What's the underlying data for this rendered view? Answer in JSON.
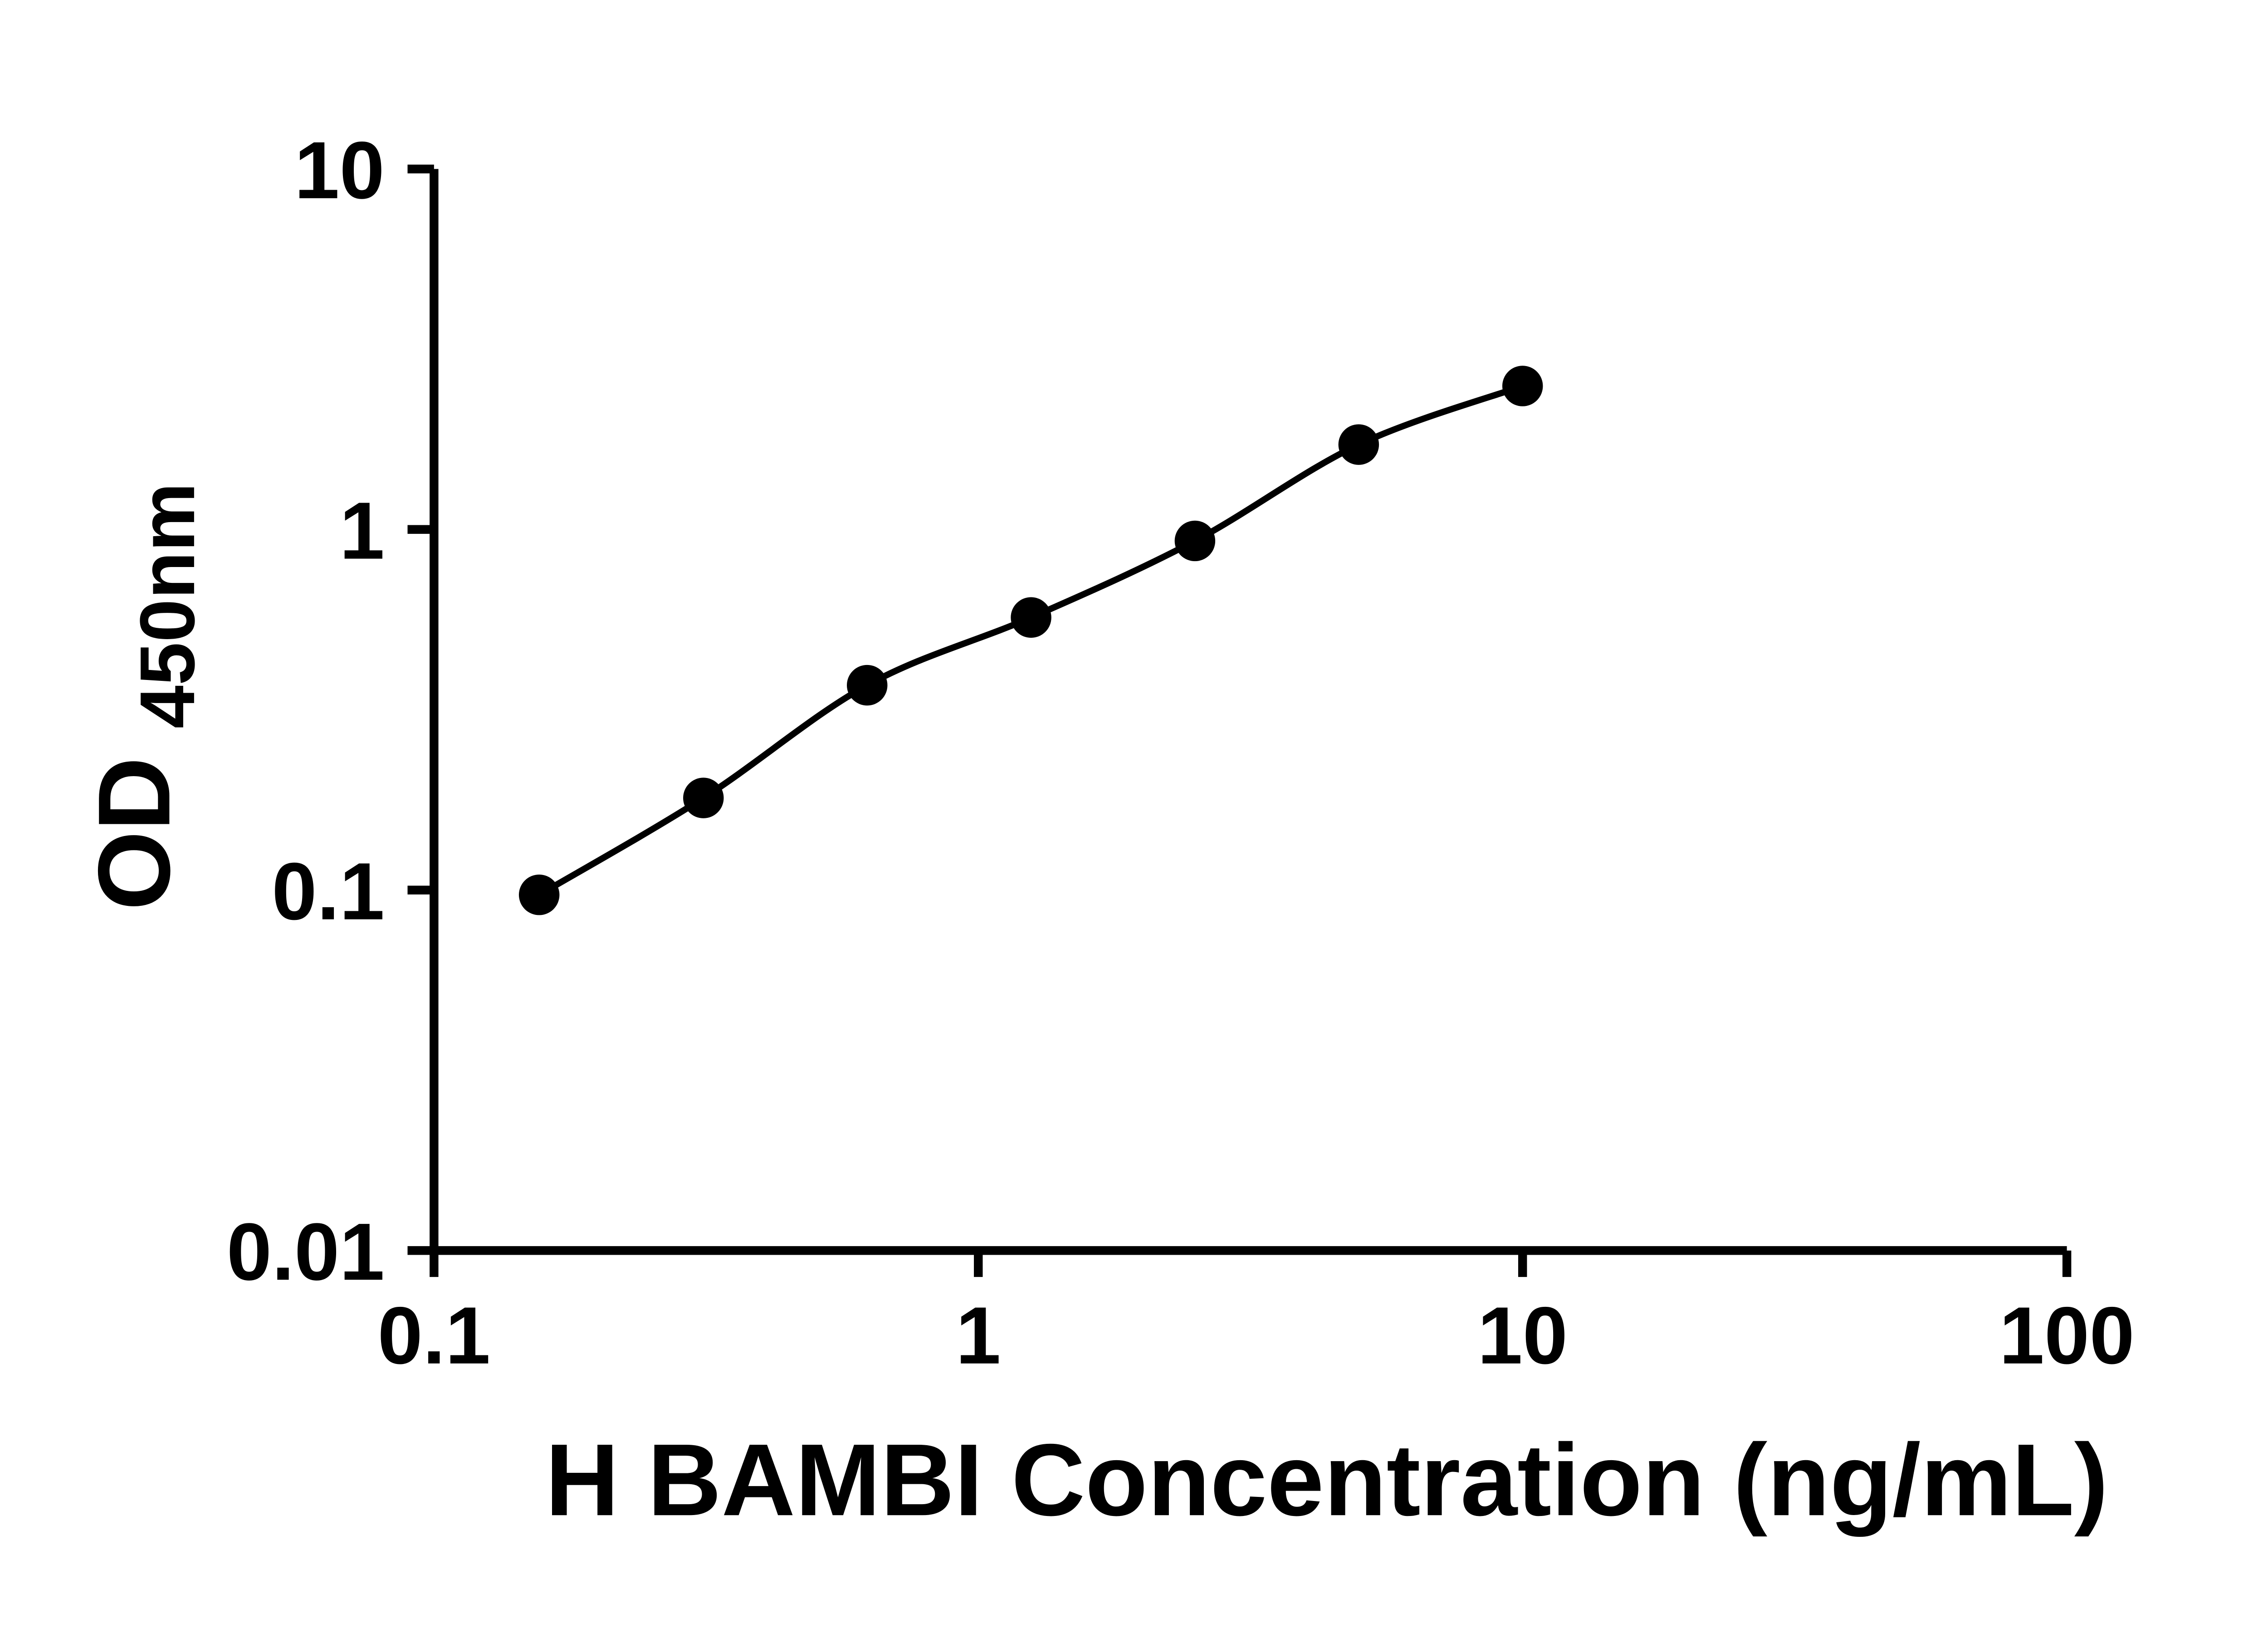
{
  "chart_data": {
    "type": "scatter",
    "title": "",
    "xlabel": "H BAMBI Concentration (ng/mL)",
    "ylabel_main": "OD",
    "ylabel_sub": "450nm",
    "x_scale": "log",
    "y_scale": "log",
    "xlim": [
      0.1,
      100
    ],
    "ylim": [
      0.01,
      10
    ],
    "grid": false,
    "legend": false,
    "x_ticks": [
      {
        "value": 0.1,
        "label": "0.1"
      },
      {
        "value": 1,
        "label": "1"
      },
      {
        "value": 10,
        "label": "10"
      },
      {
        "value": 100,
        "label": "100"
      }
    ],
    "y_ticks": [
      {
        "value": 0.01,
        "label": "0.01"
      },
      {
        "value": 0.1,
        "label": "0.1"
      },
      {
        "value": 1,
        "label": "1"
      },
      {
        "value": 10,
        "label": "10"
      }
    ],
    "points": [
      {
        "x": 0.156,
        "y": 0.097
      },
      {
        "x": 0.3125,
        "y": 0.18
      },
      {
        "x": 0.625,
        "y": 0.37
      },
      {
        "x": 1.25,
        "y": 0.57
      },
      {
        "x": 2.5,
        "y": 0.93
      },
      {
        "x": 5,
        "y": 1.72
      },
      {
        "x": 10,
        "y": 2.5
      }
    ],
    "colors": {
      "axis": "#000000",
      "marker": "#000000",
      "curve": "#000000",
      "background": "#ffffff"
    }
  }
}
